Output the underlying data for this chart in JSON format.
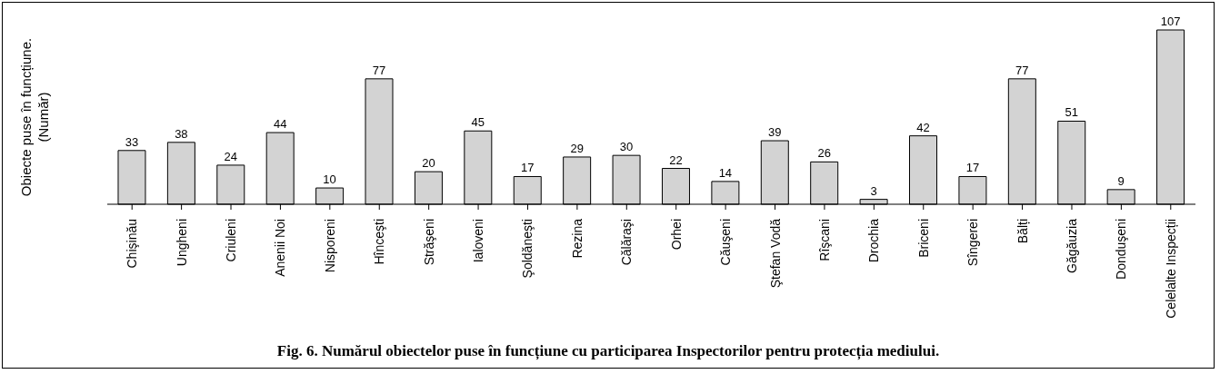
{
  "chart_data": {
    "type": "bar",
    "title": "Fig. 6. Numărul obiectelor puse în funcțiune cu participarea Inspectorilor pentru protecția mediului.",
    "ylabel": "Obiecte puse în funcțiune.\n(Număr)",
    "categories": [
      "Chişinău",
      "Ungheni",
      "Criuleni",
      "Anenii Noi",
      "Nisporeni",
      "Hînceşti",
      "Străşeni",
      "Ialoveni",
      "Şoldăneşti",
      "Rezina",
      "Călăraşi",
      "Orhei",
      "Căuşeni",
      "Ştefan Vodă",
      "Rîşcani",
      "Drochia",
      "Briceni",
      "Sîngerei",
      "Bălți",
      "Găgăuzia",
      "Donduşeni",
      "Celelalte Inspecții"
    ],
    "values": [
      33,
      38,
      24,
      44,
      10,
      77,
      20,
      45,
      17,
      29,
      30,
      22,
      14,
      39,
      26,
      3,
      42,
      17,
      77,
      51,
      9,
      107
    ],
    "color": "#d3d3d3",
    "data_labels": true,
    "grid": false,
    "legend": false
  }
}
